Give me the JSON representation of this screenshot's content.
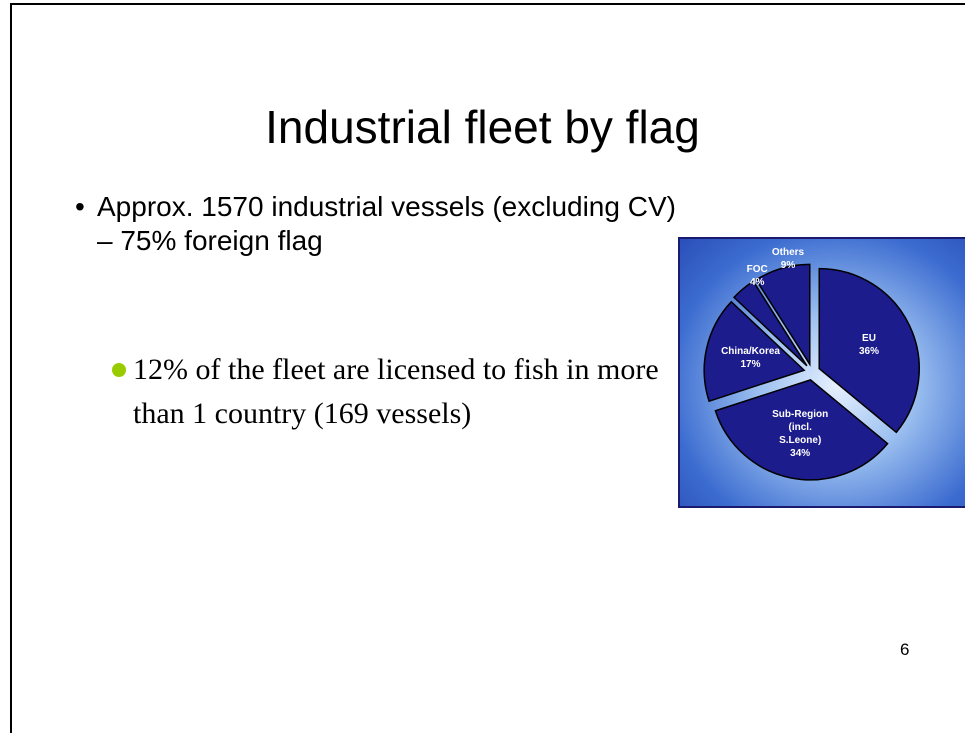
{
  "slide": {
    "title": "Industrial fleet by flag",
    "bullet": "Approx. 1570 industrial vessels (excluding CV) – 75% foreign flag",
    "subbullet": "12% of the fleet are licensed to fish in more than 1 country (169 vessels)",
    "page_number": "6"
  },
  "chart_data": {
    "type": "pie",
    "categories": [
      "EU",
      "Sub-Region (incl. S.Leone)",
      "China/Korea",
      "FOC",
      "Others"
    ],
    "values": [
      36,
      34,
      17,
      4,
      9
    ],
    "value_labels": [
      "36%",
      "34%",
      "17%",
      "4%",
      "9%"
    ],
    "color": "#1c1c8c"
  }
}
